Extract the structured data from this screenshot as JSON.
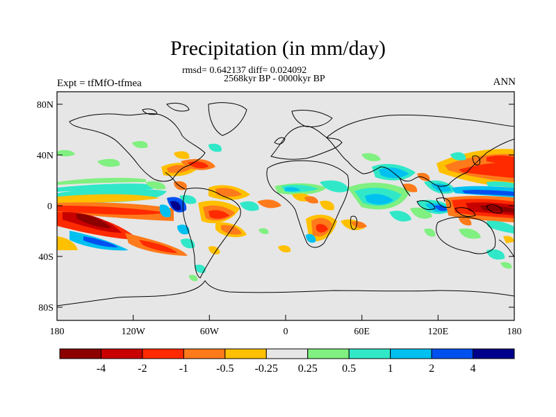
{
  "title": "Precipitation (in mm/day)",
  "stats": "rmsd= 0.642137 diff= 0.024092",
  "period": "2568kyr BP - 0000kyr BP",
  "expt": "Expt = tfMfO-tfmea",
  "season": "ANN",
  "lat_labels": [
    "80N",
    "40N",
    "0",
    "40S",
    "80S"
  ],
  "lon_labels": [
    "180",
    "120W",
    "60W",
    "0",
    "60E",
    "120E",
    "180"
  ],
  "colorbar": {
    "colors": [
      "#8b0000",
      "#c80000",
      "#ff2a00",
      "#ff7a1a",
      "#ffc000",
      "#e6e6e6",
      "#80f080",
      "#30e8c8",
      "#00c0f0",
      "#0050f0",
      "#00008c"
    ],
    "labels": [
      "-4",
      "-2",
      "-1",
      "-0.5",
      "-0.25",
      "0.25",
      "0.5",
      "1",
      "2",
      "4"
    ]
  }
}
